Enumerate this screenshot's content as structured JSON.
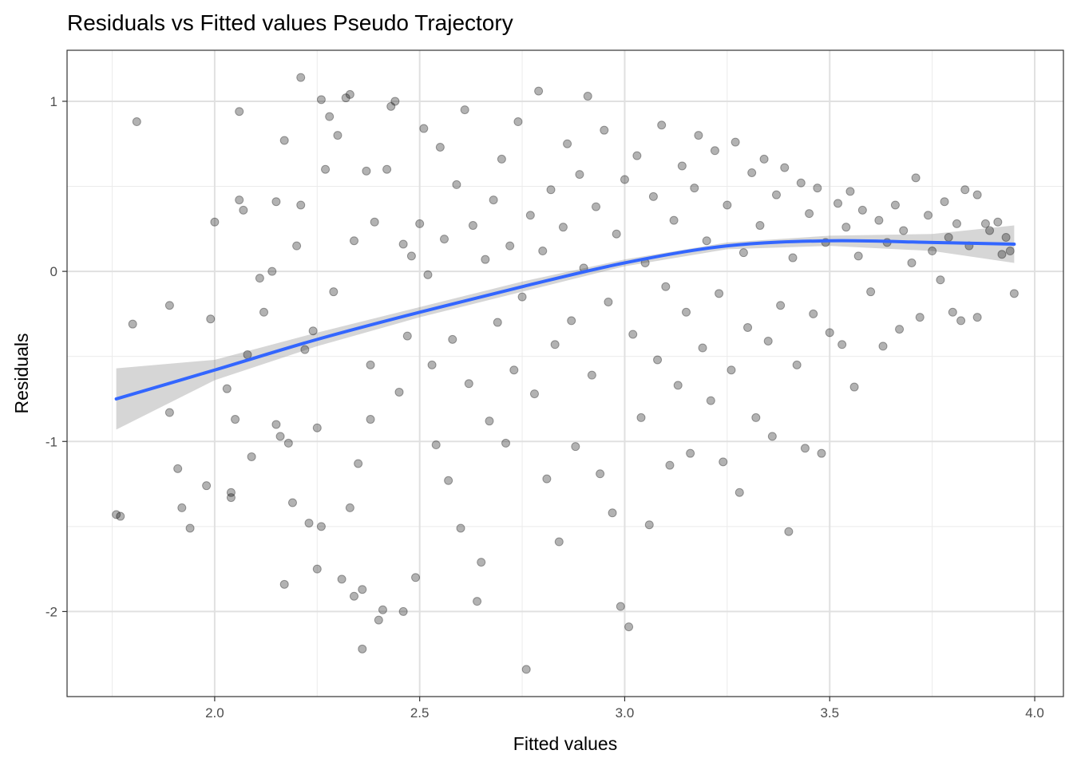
{
  "chart_data": {
    "type": "scatter",
    "title": "Residuals vs Fitted values Pseudo Trajectory",
    "xlabel": "Fitted values",
    "ylabel": "Residuals",
    "xlim": [
      1.64,
      4.07
    ],
    "ylim": [
      -2.5,
      1.3
    ],
    "x_ticks": [
      2.0,
      2.5,
      3.0,
      3.5,
      4.0
    ],
    "x_tick_labels": [
      "2.0",
      "2.5",
      "3.0",
      "3.5",
      "4.0"
    ],
    "y_ticks": [
      -2,
      -1,
      0,
      1
    ],
    "y_tick_labels": [
      "-2",
      "-1",
      "0",
      "1"
    ],
    "grid": true,
    "legend": "none",
    "point_color": "#000000",
    "point_opacity": 0.3,
    "smooth_color": "#3366FF",
    "band_color": "#999999",
    "note": "Scatter of approximately 4000 residuals; sampled points approximate the visible cloud.",
    "points": [
      [
        1.76,
        -1.43
      ],
      [
        1.77,
        -1.44
      ],
      [
        1.81,
        0.88
      ],
      [
        1.8,
        -0.31
      ],
      [
        1.89,
        -0.2
      ],
      [
        1.89,
        -0.83
      ],
      [
        1.91,
        -1.16
      ],
      [
        1.92,
        -1.39
      ],
      [
        1.94,
        -1.51
      ],
      [
        1.98,
        -1.26
      ],
      [
        1.99,
        -0.28
      ],
      [
        2.0,
        0.29
      ],
      [
        2.03,
        -0.69
      ],
      [
        2.04,
        -1.3
      ],
      [
        2.04,
        -1.33
      ],
      [
        2.05,
        -0.87
      ],
      [
        2.06,
        0.42
      ],
      [
        2.06,
        0.94
      ],
      [
        2.07,
        0.36
      ],
      [
        2.08,
        -0.49
      ],
      [
        2.09,
        -1.09
      ],
      [
        2.11,
        -0.04
      ],
      [
        2.12,
        -0.24
      ],
      [
        2.14,
        0.0
      ],
      [
        2.15,
        0.41
      ],
      [
        2.15,
        -0.9
      ],
      [
        2.16,
        -0.97
      ],
      [
        2.17,
        0.77
      ],
      [
        2.17,
        -1.84
      ],
      [
        2.18,
        -1.01
      ],
      [
        2.19,
        -1.36
      ],
      [
        2.2,
        0.15
      ],
      [
        2.21,
        0.39
      ],
      [
        2.21,
        1.14
      ],
      [
        2.22,
        -0.46
      ],
      [
        2.23,
        -1.48
      ],
      [
        2.24,
        -0.35
      ],
      [
        2.25,
        -0.92
      ],
      [
        2.25,
        -1.75
      ],
      [
        2.26,
        -1.5
      ],
      [
        2.26,
        1.01
      ],
      [
        2.27,
        0.6
      ],
      [
        2.28,
        0.91
      ],
      [
        2.29,
        -0.12
      ],
      [
        2.3,
        0.8
      ],
      [
        2.31,
        -1.81
      ],
      [
        2.32,
        1.02
      ],
      [
        2.33,
        1.04
      ],
      [
        2.33,
        -1.39
      ],
      [
        2.34,
        -1.91
      ],
      [
        2.34,
        0.18
      ],
      [
        2.35,
        -1.13
      ],
      [
        2.36,
        -2.22
      ],
      [
        2.36,
        -1.87
      ],
      [
        2.37,
        0.59
      ],
      [
        2.38,
        -0.87
      ],
      [
        2.38,
        -0.55
      ],
      [
        2.39,
        0.29
      ],
      [
        2.4,
        -2.05
      ],
      [
        2.41,
        -1.99
      ],
      [
        2.42,
        0.6
      ],
      [
        2.43,
        0.97
      ],
      [
        2.44,
        1.0
      ],
      [
        2.45,
        -0.71
      ],
      [
        2.46,
        0.16
      ],
      [
        2.46,
        -2.0
      ],
      [
        2.47,
        -0.38
      ],
      [
        2.48,
        0.09
      ],
      [
        2.49,
        -1.8
      ],
      [
        2.5,
        0.28
      ],
      [
        2.51,
        0.84
      ],
      [
        2.52,
        -0.02
      ],
      [
        2.53,
        -0.55
      ],
      [
        2.54,
        -1.02
      ],
      [
        2.55,
        0.73
      ],
      [
        2.56,
        0.19
      ],
      [
        2.57,
        -1.23
      ],
      [
        2.58,
        -0.4
      ],
      [
        2.59,
        0.51
      ],
      [
        2.6,
        -1.51
      ],
      [
        2.61,
        0.95
      ],
      [
        2.62,
        -0.66
      ],
      [
        2.63,
        0.27
      ],
      [
        2.64,
        -1.94
      ],
      [
        2.65,
        -1.71
      ],
      [
        2.66,
        0.07
      ],
      [
        2.67,
        -0.88
      ],
      [
        2.68,
        0.42
      ],
      [
        2.69,
        -0.3
      ],
      [
        2.7,
        0.66
      ],
      [
        2.71,
        -1.01
      ],
      [
        2.72,
        0.15
      ],
      [
        2.73,
        -0.58
      ],
      [
        2.74,
        0.88
      ],
      [
        2.75,
        -0.15
      ],
      [
        2.76,
        -2.34
      ],
      [
        2.77,
        0.33
      ],
      [
        2.78,
        -0.72
      ],
      [
        2.79,
        1.06
      ],
      [
        2.8,
        0.12
      ],
      [
        2.81,
        -1.22
      ],
      [
        2.82,
        0.48
      ],
      [
        2.83,
        -0.43
      ],
      [
        2.84,
        -1.59
      ],
      [
        2.85,
        0.26
      ],
      [
        2.86,
        0.75
      ],
      [
        2.87,
        -0.29
      ],
      [
        2.88,
        -1.03
      ],
      [
        2.89,
        0.57
      ],
      [
        2.9,
        0.02
      ],
      [
        2.91,
        1.03
      ],
      [
        2.92,
        -0.61
      ],
      [
        2.93,
        0.38
      ],
      [
        2.94,
        -1.19
      ],
      [
        2.95,
        0.83
      ],
      [
        2.96,
        -0.18
      ],
      [
        2.97,
        -1.42
      ],
      [
        2.98,
        0.22
      ],
      [
        2.99,
        -1.97
      ],
      [
        3.0,
        0.54
      ],
      [
        3.01,
        -2.09
      ],
      [
        3.02,
        -0.37
      ],
      [
        3.03,
        0.68
      ],
      [
        3.04,
        -0.86
      ],
      [
        3.05,
        0.05
      ],
      [
        3.06,
        -1.49
      ],
      [
        3.07,
        0.44
      ],
      [
        3.08,
        -0.52
      ],
      [
        3.09,
        0.86
      ],
      [
        3.1,
        -0.09
      ],
      [
        3.11,
        -1.14
      ],
      [
        3.12,
        0.3
      ],
      [
        3.13,
        -0.67
      ],
      [
        3.14,
        0.62
      ],
      [
        3.15,
        -0.24
      ],
      [
        3.16,
        -1.07
      ],
      [
        3.17,
        0.49
      ],
      [
        3.18,
        0.8
      ],
      [
        3.19,
        -0.45
      ],
      [
        3.2,
        0.18
      ],
      [
        3.21,
        -0.76
      ],
      [
        3.22,
        0.71
      ],
      [
        3.23,
        -0.13
      ],
      [
        3.24,
        -1.12
      ],
      [
        3.25,
        0.39
      ],
      [
        3.26,
        -0.58
      ],
      [
        3.27,
        0.76
      ],
      [
        3.28,
        -1.3
      ],
      [
        3.29,
        0.11
      ],
      [
        3.3,
        -0.33
      ],
      [
        3.31,
        0.58
      ],
      [
        3.32,
        -0.86
      ],
      [
        3.33,
        0.27
      ],
      [
        3.34,
        0.66
      ],
      [
        3.35,
        -0.41
      ],
      [
        3.36,
        -0.97
      ],
      [
        3.37,
        0.45
      ],
      [
        3.38,
        -0.2
      ],
      [
        3.39,
        0.61
      ],
      [
        3.4,
        -1.53
      ],
      [
        3.41,
        0.08
      ],
      [
        3.42,
        -0.55
      ],
      [
        3.43,
        0.52
      ],
      [
        3.44,
        -1.04
      ],
      [
        3.45,
        0.34
      ],
      [
        3.46,
        -0.25
      ],
      [
        3.47,
        0.49
      ],
      [
        3.48,
        -1.07
      ],
      [
        3.49,
        0.17
      ],
      [
        3.5,
        -0.36
      ],
      [
        3.52,
        0.4
      ],
      [
        3.53,
        -0.43
      ],
      [
        3.54,
        0.26
      ],
      [
        3.55,
        0.47
      ],
      [
        3.56,
        -0.68
      ],
      [
        3.57,
        0.09
      ],
      [
        3.58,
        0.36
      ],
      [
        3.6,
        -0.12
      ],
      [
        3.62,
        0.3
      ],
      [
        3.63,
        -0.44
      ],
      [
        3.64,
        0.17
      ],
      [
        3.66,
        0.39
      ],
      [
        3.67,
        -0.34
      ],
      [
        3.68,
        0.24
      ],
      [
        3.7,
        0.05
      ],
      [
        3.71,
        0.55
      ],
      [
        3.72,
        -0.27
      ],
      [
        3.74,
        0.33
      ],
      [
        3.75,
        0.12
      ],
      [
        3.77,
        -0.05
      ],
      [
        3.78,
        0.41
      ],
      [
        3.79,
        0.2
      ],
      [
        3.8,
        -0.24
      ],
      [
        3.81,
        0.28
      ],
      [
        3.82,
        -0.29
      ],
      [
        3.83,
        0.48
      ],
      [
        3.84,
        0.15
      ],
      [
        3.86,
        0.45
      ],
      [
        3.86,
        -0.27
      ],
      [
        3.88,
        0.28
      ],
      [
        3.89,
        0.24
      ],
      [
        3.91,
        0.29
      ],
      [
        3.92,
        0.1
      ],
      [
        3.93,
        0.2
      ],
      [
        3.94,
        0.12
      ],
      [
        3.95,
        -0.13
      ]
    ],
    "smooth_curve": {
      "x": [
        1.76,
        2.0,
        2.25,
        2.5,
        2.75,
        3.0,
        3.25,
        3.5,
        3.75,
        3.95
      ],
      "y": [
        -0.75,
        -0.58,
        -0.4,
        -0.24,
        -0.09,
        0.05,
        0.15,
        0.18,
        0.17,
        0.16
      ],
      "band_half_width": [
        0.18,
        0.06,
        0.04,
        0.03,
        0.03,
        0.02,
        0.02,
        0.03,
        0.05,
        0.11
      ]
    }
  }
}
